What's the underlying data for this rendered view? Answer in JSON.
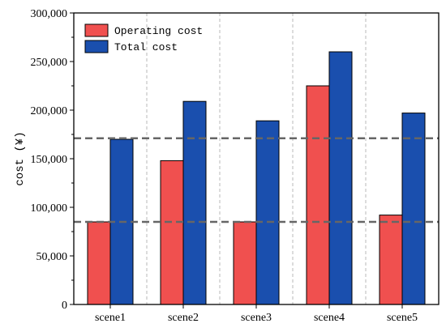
{
  "chart_data": {
    "type": "bar",
    "categories": [
      "scene1",
      "scene2",
      "scene3",
      "scene4",
      "scene5"
    ],
    "series": [
      {
        "name": "Operating cost",
        "color": "#f0504f",
        "values": [
          85000,
          148000,
          85000,
          225000,
          92000
        ]
      },
      {
        "name": "Total cost",
        "color": "#1a4fae",
        "values": [
          170000,
          209000,
          189000,
          260000,
          197000
        ]
      }
    ],
    "ylabel": "cost (¥)",
    "xlabel": "",
    "ylim": [
      0,
      300000
    ],
    "yticks": [
      0,
      50000,
      100000,
      150000,
      200000,
      250000,
      300000
    ],
    "ytick_labels": [
      "0",
      "50,000",
      "100,000",
      "150,000",
      "200,000",
      "250,000",
      "300,000"
    ],
    "reference_lines": [
      85000,
      171000
    ],
    "legend_position": "top-left",
    "grid": "vertical dashed separators between categories"
  }
}
